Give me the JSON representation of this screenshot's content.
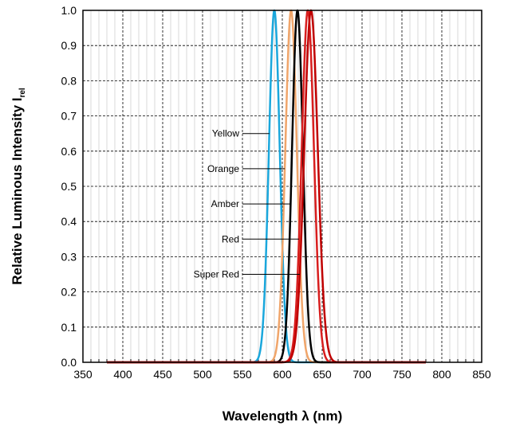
{
  "chart_data": {
    "type": "line",
    "xlabel": "Wavelength λ (nm)",
    "ylabel_main": "Relative Luminous Intensity I",
    "ylabel_sub": "rel",
    "xlim": [
      350,
      850
    ],
    "ylim": [
      0,
      1.0
    ],
    "x_ticks": [
      "350",
      "400",
      "450",
      "500",
      "550",
      "600",
      "650",
      "700",
      "750",
      "800",
      "850"
    ],
    "y_ticks": [
      "0.0",
      "0.1",
      "0.2",
      "0.3",
      "0.4",
      "0.5",
      "0.6",
      "0.7",
      "0.8",
      "0.9",
      "1.0"
    ],
    "grid": true,
    "baseline_range": [
      380,
      780
    ],
    "series": [
      {
        "name": "Yellow",
        "peak": 590,
        "fwhm": 16,
        "color": "#1aa7dc",
        "label_y": 0.65
      },
      {
        "name": "Orange",
        "peak": 611,
        "fwhm": 17,
        "color": "#f0a56a",
        "label_y": 0.55
      },
      {
        "name": "Amber",
        "peak": 619,
        "fwhm": 16,
        "color": "#000000",
        "label_y": 0.45
      },
      {
        "name": "Red",
        "peak": 632,
        "fwhm": 18,
        "color": "#d81e1e",
        "label_y": 0.35
      },
      {
        "name": "Super Red",
        "peak": 636,
        "fwhm": 20,
        "color": "#c00000",
        "label_y": 0.25
      }
    ]
  }
}
